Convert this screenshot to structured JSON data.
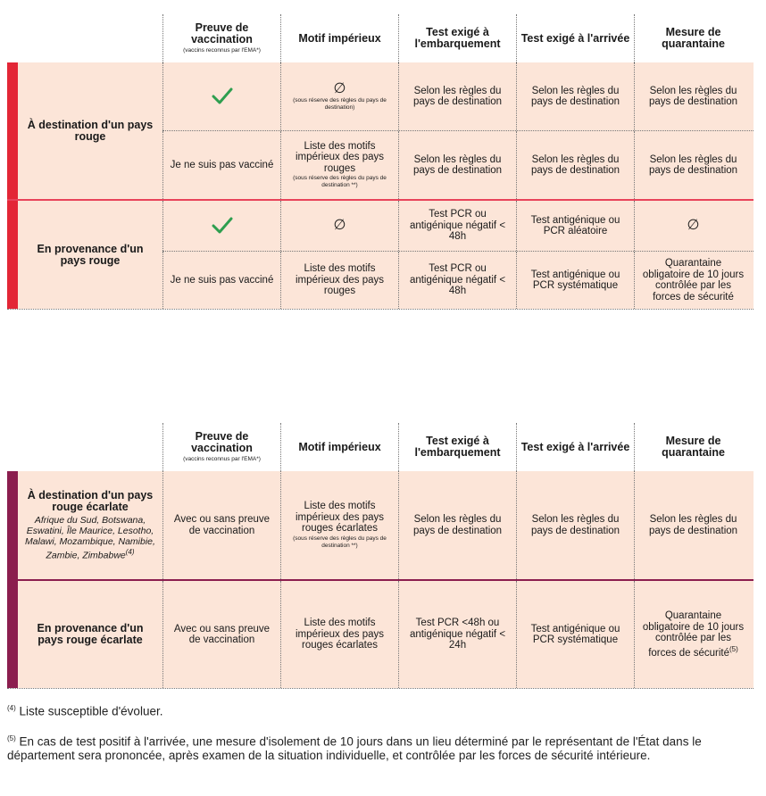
{
  "colors": {
    "red_bar": "#e32636",
    "red_line": "#e8435a",
    "scarlet_bar": "#8b1e4e",
    "scarlet_line": "#8b1e4e",
    "cell_bg": "#fce5d8",
    "check": "#2e9e4f"
  },
  "headers": {
    "col1_title": "Preuve de vaccination",
    "col1_note": "(vaccins reconnus par l'EMA*)",
    "col2": "Motif impérieux",
    "col3": "Test exigé à l'embarquement",
    "col4": "Test exigé à l'arrivée",
    "col5": "Mesure de quarantaine"
  },
  "table1": {
    "group1": {
      "label": "À destination d'un pays rouge",
      "row1": {
        "c1": "check-icon",
        "c2_symbol": "∅",
        "c2_note": "(sous réserve des règles du pays de destination)",
        "c3": "Selon les règles du pays de destination",
        "c4": "Selon les règles du pays de destination",
        "c5": "Selon les règles du pays de destination"
      },
      "row2": {
        "c1": "Je ne suis pas vacciné",
        "c2": "Liste des motifs impérieux des pays rouges",
        "c2_note": "(sous réserve des règles du pays de destination **)",
        "c3": "Selon les règles du pays de destination",
        "c4": "Selon les règles du pays de destination",
        "c5": "Selon les règles du pays de destination"
      }
    },
    "group2": {
      "label": "En provenance d'un pays rouge",
      "row1": {
        "c1": "check-icon",
        "c2_symbol": "∅",
        "c3": "Test PCR ou antigénique négatif < 48h",
        "c4": "Test antigénique ou PCR aléatoire",
        "c5_symbol": "∅"
      },
      "row2": {
        "c1": "Je ne suis pas vacciné",
        "c2": "Liste des motifs impérieux des pays rouges",
        "c3": "Test PCR ou antigénique négatif < 48h",
        "c4": "Test antigénique ou PCR systématique",
        "c5": "Quarantaine obligatoire de 10 jours contrôlée par les forces de sécurité"
      }
    }
  },
  "table2": {
    "group1": {
      "label": "À destination d'un pays rouge écarlate",
      "countries": "Afrique du Sud, Botswana, Eswatini, Île Maurice, Lesotho, Malawi, Mozambique, Namibie, Zambie, Zimbabwe",
      "countries_sup": "(4)",
      "row": {
        "c1": "Avec ou sans preuve de vaccination",
        "c2": "Liste des motifs impérieux des pays rouges écarlates",
        "c2_note": "(sous réserve des règles du pays de destination **)",
        "c3": "Selon les règles du pays de destination",
        "c4": "Selon les règles du pays de destination",
        "c5": "Selon les règles du pays de destination"
      }
    },
    "group2": {
      "label": "En provenance d'un pays rouge écarlate",
      "row": {
        "c1": "Avec ou sans preuve de vaccination",
        "c2": "Liste des motifs impérieux des pays rouges écarlates",
        "c3": "Test PCR <48h ou antigénique négatif < 24h",
        "c4": "Test antigénique ou PCR systématique",
        "c5": "Quarantaine obligatoire de 10 jours contrôlée par les forces de sécurité",
        "c5_sup": "(5)"
      }
    }
  },
  "footnotes": {
    "fn4_marker": "(4)",
    "fn4_text": " Liste susceptible d'évoluer.",
    "fn5_marker": "(5)",
    "fn5_text": " En cas de test positif à l'arrivée, une mesure d'isolement de 10 jours dans un lieu déterminé par le représentant de l'État dans le département sera prononcée, après examen de la situation individuelle, et contrôlée par les forces de sécurité intérieure."
  }
}
